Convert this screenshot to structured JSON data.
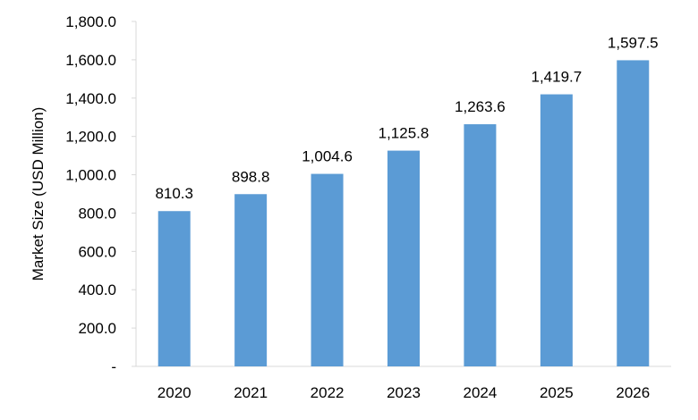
{
  "chart_data": {
    "type": "bar",
    "title": "",
    "xlabel": "",
    "ylabel": "Market Size (USD Million)",
    "categories": [
      "2020",
      "2021",
      "2022",
      "2023",
      "2024",
      "2025",
      "2026"
    ],
    "values": [
      810.3,
      898.8,
      1004.6,
      1125.8,
      1263.6,
      1419.7,
      1597.5
    ],
    "data_labels": [
      "810.3",
      "898.8",
      "1,004.6",
      "1,125.8",
      "1,263.6",
      "1,419.7",
      "1,597.5"
    ],
    "y_ticks": [
      0,
      200,
      400,
      600,
      800,
      1000,
      1200,
      1400,
      1600,
      1800
    ],
    "y_tick_labels": [
      "-",
      "200.0",
      "400.0",
      "600.0",
      "800.0",
      "1,000.0",
      "1,200.0",
      "1,400.0",
      "1,600.0",
      "1,800.0"
    ],
    "ylim": [
      0,
      1800
    ],
    "grid": false,
    "legend": "none",
    "colors": {
      "bar": "#5b9bd5",
      "axis": "#d9d9d9",
      "text": "#000000"
    }
  }
}
